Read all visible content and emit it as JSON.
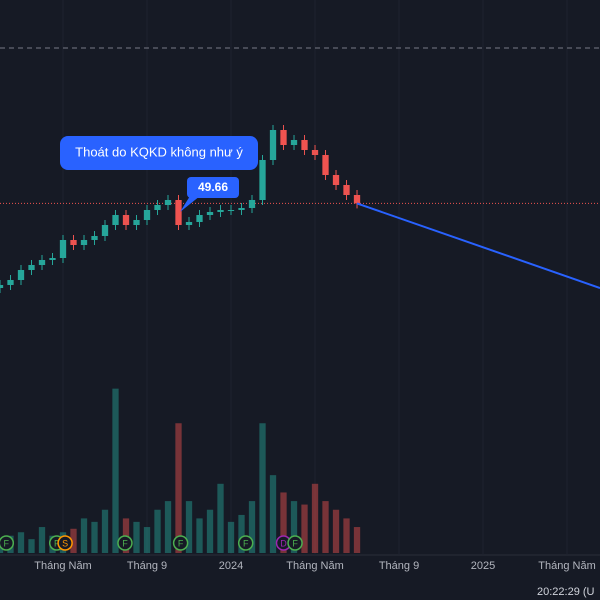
{
  "chart_data": {
    "type": "candlestick",
    "xlim": [
      1,
      29.57
    ],
    "ylim": [
      15,
      70
    ],
    "volume_lim": [
      0,
      100
    ],
    "xticks": [
      {
        "value": 4,
        "label": "Tháng Năm"
      },
      {
        "value": 8,
        "label": "Tháng 9"
      },
      {
        "value": 12,
        "label": "2024"
      },
      {
        "value": 16,
        "label": "Tháng Năm"
      },
      {
        "value": 20,
        "label": "Tháng 9"
      },
      {
        "value": 24,
        "label": "2025"
      },
      {
        "value": 28,
        "label": "Tháng Năm"
      }
    ],
    "grid": true,
    "up_color": "#26a69a",
    "down_color": "#ef5350",
    "x": [
      1,
      1.5,
      2,
      2.5,
      3,
      3.5,
      4,
      4.5,
      5,
      5.5,
      6,
      6.5,
      7,
      7.5,
      8,
      8.5,
      9,
      9.5,
      10,
      10.5,
      11,
      11.5,
      12,
      12.5,
      13,
      13.5,
      14,
      14.5,
      15,
      15.5,
      16,
      16.5,
      17,
      17.5,
      18
    ],
    "open": [
      41.2,
      41.5,
      42.0,
      43.0,
      43.5,
      44.0,
      44.2,
      46.0,
      45.5,
      46.0,
      46.4,
      47.5,
      48.5,
      47.5,
      48.0,
      49.0,
      49.5,
      50.0,
      47.5,
      47.8,
      48.5,
      48.8,
      49.0,
      49.0,
      49.2,
      50.0,
      54.0,
      57.0,
      55.5,
      56.0,
      55.0,
      54.5,
      52.5,
      51.5,
      50.5
    ],
    "high": [
      42.0,
      42.5,
      43.5,
      44.0,
      44.5,
      44.7,
      46.5,
      46.5,
      46.5,
      46.9,
      48.0,
      49.0,
      49.0,
      48.5,
      49.5,
      50.0,
      50.5,
      50.5,
      48.3,
      49.0,
      49.3,
      49.5,
      49.5,
      49.7,
      50.5,
      54.5,
      57.5,
      57.5,
      56.5,
      56.5,
      55.5,
      55.0,
      53.0,
      52.0,
      51.0
    ],
    "low": [
      40.7,
      41.0,
      41.5,
      42.5,
      43.0,
      43.5,
      43.7,
      45.0,
      45.0,
      45.5,
      45.9,
      47.0,
      47.0,
      47.0,
      47.5,
      48.5,
      49.0,
      47.0,
      47.0,
      47.3,
      48.0,
      48.3,
      48.5,
      48.5,
      48.7,
      49.5,
      53.5,
      55.0,
      55.0,
      54.5,
      54.0,
      52.0,
      51.0,
      50.0,
      49.16
    ],
    "close": [
      41.5,
      42.0,
      43.0,
      43.5,
      44.0,
      44.2,
      46.0,
      45.5,
      46.0,
      46.4,
      47.5,
      48.5,
      47.5,
      48.0,
      49.0,
      49.5,
      50.0,
      47.5,
      47.8,
      48.5,
      48.8,
      49.0,
      49.0,
      49.2,
      50.0,
      54.0,
      57.0,
      55.5,
      56.0,
      55.0,
      54.5,
      52.5,
      51.5,
      50.5,
      49.66
    ],
    "volume": [
      8,
      10,
      12,
      8,
      15,
      10,
      12,
      14,
      20,
      18,
      25,
      95,
      20,
      18,
      15,
      25,
      30,
      75,
      30,
      20,
      25,
      40,
      18,
      22,
      30,
      75,
      45,
      35,
      30,
      28,
      40,
      30,
      25,
      20,
      15
    ],
    "price_line": 49.66,
    "dashed_line": 65.2,
    "trend_line": {
      "x": [
        18,
        29.57
      ],
      "y": [
        49.66,
        41.2
      ],
      "color": "#2962ff"
    },
    "annotation": "Thoát do KQKD không như ý",
    "events": [
      {
        "x": 1.3,
        "label": "F",
        "color": "#4caf50"
      },
      {
        "x": 3.7,
        "label": "F",
        "color": "#4caf50"
      },
      {
        "x": 4.1,
        "label": "S",
        "color": "#ff9800"
      },
      {
        "x": 6.95,
        "label": "F",
        "color": "#4caf50"
      },
      {
        "x": 9.6,
        "label": "F",
        "color": "#4caf50"
      },
      {
        "x": 12.7,
        "label": "F",
        "color": "#4caf50"
      },
      {
        "x": 14.5,
        "label": "D",
        "color": "#9c27b0"
      },
      {
        "x": 15.05,
        "label": "F",
        "color": "#4caf50"
      }
    ],
    "clock": "20:22:29 (U"
  }
}
